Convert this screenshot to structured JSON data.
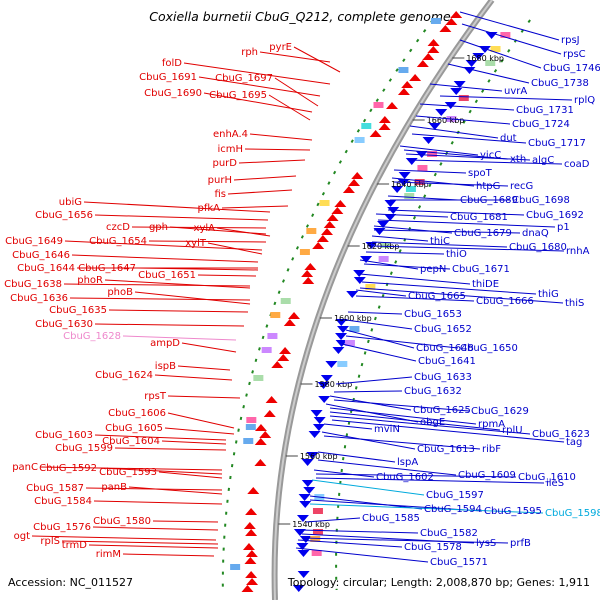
{
  "title": "Coxiella burnetii CbuG_Q212, complete genome",
  "accession": "Accession: NC_011527",
  "summary": "Topology: circular; Length: 2,008,870 bp; Genes: 1,911",
  "colors": {
    "left": "#e00000",
    "right": "#0000cc",
    "pink": "#ee88cc",
    "cyan": "#00aadd",
    "backbone": "#888888",
    "tick": "#228822"
  },
  "ticks": [
    "1680 kbp",
    "1660 kbp",
    "1640 kbp",
    "1620 kbp",
    "1600 kbp",
    "1580 kbp",
    "1560 kbp",
    "1540 kbp"
  ],
  "left_labels": [
    "rph",
    "pyrE",
    "folD",
    "CbuG_1691",
    "CbuG_1697",
    "CbuG_1690",
    "CbuG_1695",
    "enhA.4",
    "icmH",
    "purD",
    "purH",
    "fis",
    "pfkA",
    "ubiG",
    "CbuG_1656",
    "czcD",
    "gph",
    "xylA",
    "CbuG_1654",
    "CbuG_1649",
    "xylT",
    "CbuG_1646",
    "CbuG_1644",
    "CbuG_1647",
    "CbuG_1651",
    "CbuG_1638",
    "phoR",
    "CbuG_1636",
    "phoB",
    "CbuG_1635",
    "CbuG_1630",
    "CbuG_1628",
    "ampD",
    "ispB",
    "CbuG_1624",
    "rpsT",
    "CbuG_1606",
    "CbuG_1605",
    "CbuG_1603",
    "CbuG_1604",
    "CbuG_1599",
    "panC",
    "CbuG_1592",
    "CbuG_1593",
    "CbuG_1587",
    "panB",
    "CbuG_1584",
    "CbuG_1580",
    "CbuG_1576",
    "ogt",
    "rplS",
    "trmD",
    "rimM"
  ],
  "right_labels": [
    "rpsJ",
    "rpsC",
    "CbuG_1746",
    "CbuG_1738",
    "uvrA",
    "rplQ",
    "CbuG_1731",
    "CbuG_1724",
    "dut",
    "CbuG_1717",
    "yicC",
    "xth",
    "algC",
    "coaD",
    "spoT",
    "htpG",
    "recG",
    "CbuG_1689",
    "CbuG_1698",
    "CbuG_1692",
    "CbuG_1681",
    "p1",
    "CbuG_1679",
    "dnaQ",
    "thiC",
    "CbuG_1680",
    "rnhA",
    "thiO",
    "pepN",
    "CbuG_1671",
    "thiDE",
    "thiG",
    "thiS",
    "CbuG_1665",
    "CbuG_1666",
    "CbuG_1653",
    "CbuG_1652",
    "CbuG_1648",
    "CbuG_1650",
    "CbuG_1641",
    "CbuG_1633",
    "CbuG_1632",
    "CbuG_1625",
    "CbuG_1629",
    "obgE",
    "rpmA",
    "rplU",
    "CbuG_1623",
    "tag",
    "mviN",
    "CbuG_1613",
    "ribF",
    "lspA",
    "CbuG_1609",
    "CbuG_1602",
    "CbuG_1610",
    "ileS",
    "CbuG_1597",
    "CbuG_1594",
    "CbuG_1595",
    "CbuG_1598",
    "CbuG_1585",
    "CbuG_1582",
    "lysS",
    "prfB",
    "CbuG_1578",
    "CbuG_1571"
  ]
}
